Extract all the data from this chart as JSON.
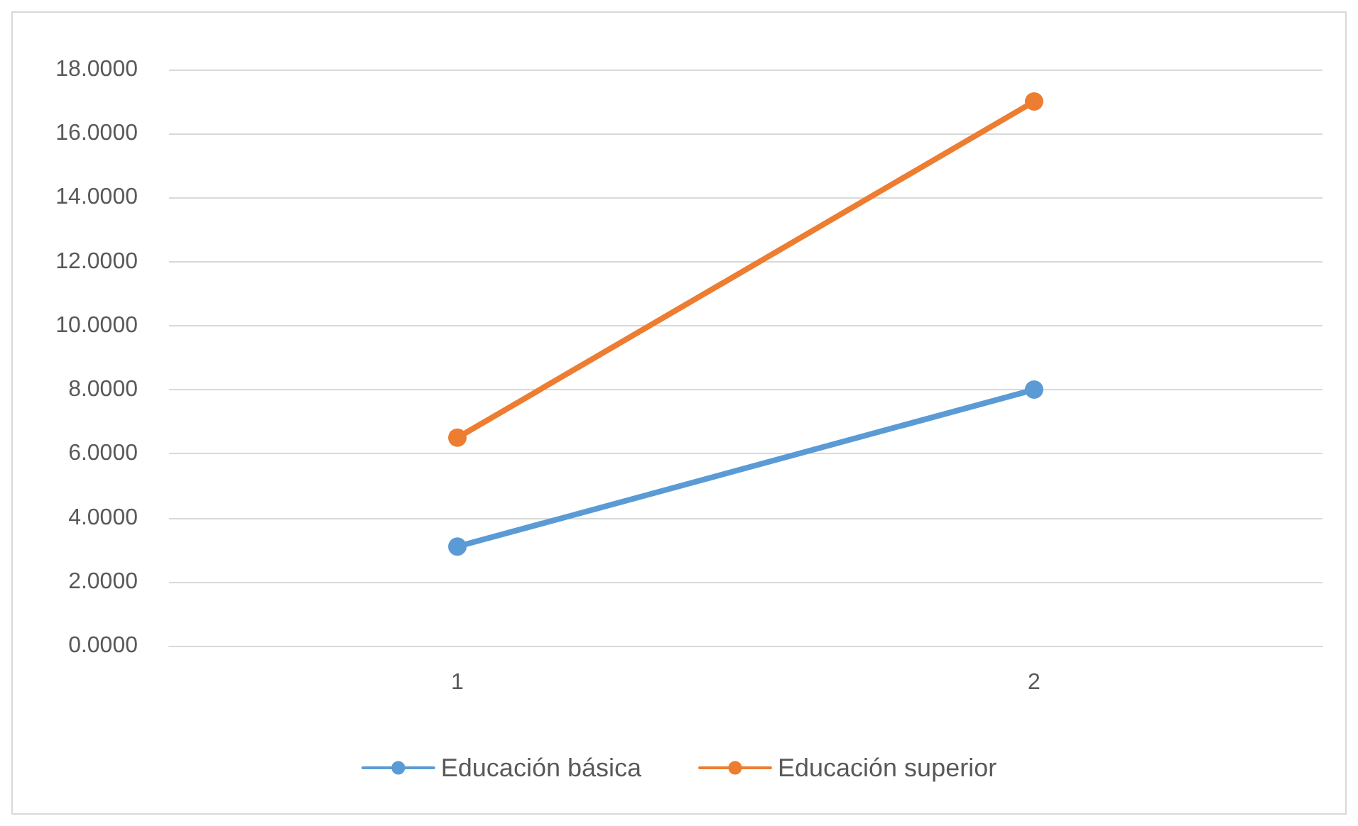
{
  "chart_data": {
    "type": "line",
    "categories": [
      "1",
      "2"
    ],
    "series": [
      {
        "name": "Educación básica",
        "color": "#5b9bd5",
        "values": [
          3.1,
          8.0
        ]
      },
      {
        "name": "Educación superior",
        "color": "#ed7d31",
        "values": [
          6.5,
          17.0
        ]
      }
    ],
    "ylim": [
      0,
      18
    ],
    "yticks": [
      {
        "value": 0,
        "label": "0.0000"
      },
      {
        "value": 2,
        "label": "2.0000"
      },
      {
        "value": 4,
        "label": "4.0000"
      },
      {
        "value": 6,
        "label": "6.0000"
      },
      {
        "value": 8,
        "label": "8.0000"
      },
      {
        "value": 10,
        "label": "10.0000"
      },
      {
        "value": 12,
        "label": "12.0000"
      },
      {
        "value": 14,
        "label": "14.0000"
      },
      {
        "value": 16,
        "label": "16.0000"
      },
      {
        "value": 18,
        "label": "18.0000"
      }
    ],
    "grid": "y",
    "legend": "bottom",
    "marker": "circle",
    "line_style": "solid"
  }
}
